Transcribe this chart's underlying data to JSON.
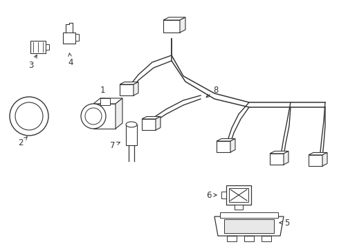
{
  "bg_color": "#ffffff",
  "line_color": "#333333",
  "label_color": "#333333",
  "fig_w": 4.9,
  "fig_h": 3.6,
  "dpi": 100,
  "xlim": [
    0,
    490
  ],
  "ylim": [
    0,
    360
  ]
}
